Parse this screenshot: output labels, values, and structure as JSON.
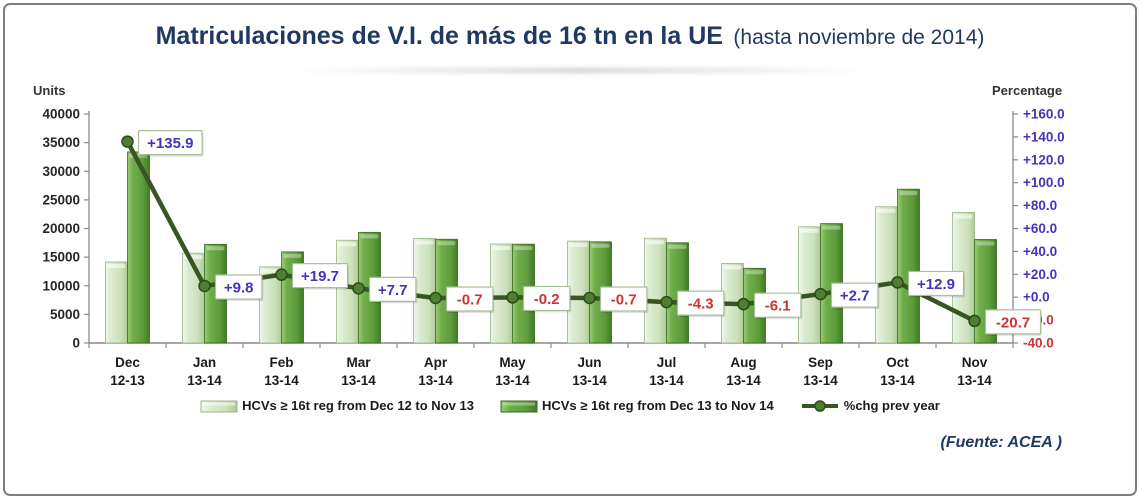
{
  "title": {
    "main": "Matriculaciones de V.I. de más de 16 tn en la UE",
    "paren": "(hasta noviembre de 2014)"
  },
  "axes": {
    "left_label": "Units",
    "right_label": "Percentage",
    "left_ticks": [
      0,
      5000,
      10000,
      15000,
      20000,
      25000,
      30000,
      35000,
      40000
    ],
    "right_ticks": [
      {
        "v": 160,
        "t": "+160.0"
      },
      {
        "v": 140,
        "t": "+140.0"
      },
      {
        "v": 120,
        "t": "+120.0"
      },
      {
        "v": 100,
        "t": "+100.0"
      },
      {
        "v": 80,
        "t": "+80.0"
      },
      {
        "v": 60,
        "t": "+60.0"
      },
      {
        "v": 40,
        "t": "+40.0"
      },
      {
        "v": 20,
        "t": "+20.0"
      },
      {
        "v": 0,
        "t": "+0.0"
      },
      {
        "v": -20,
        "t": "-20.0"
      },
      {
        "v": -40,
        "t": "-40.0"
      }
    ]
  },
  "chart_data": {
    "type": "bar",
    "categories": [
      "Dec",
      "Jan",
      "Feb",
      "Mar",
      "Apr",
      "May",
      "Jun",
      "Jul",
      "Aug",
      "Sep",
      "Oct",
      "Nov"
    ],
    "period_labels": [
      "12-13",
      "13-14",
      "13-14",
      "13-14",
      "13-14",
      "13-14",
      "13-14",
      "13-14",
      "13-14",
      "13-14",
      "13-14",
      "13-14"
    ],
    "ylabel_left": "Units",
    "ylabel_right": "Percentage",
    "ylim_left": [
      0,
      40000
    ],
    "ylim_right": [
      -40,
      160
    ],
    "grid": false,
    "legend_position": "bottom",
    "series": [
      {
        "name": "HCVs ≥ 16t reg from Dec 12 to Nov 13",
        "type": "bar",
        "values": [
          14150,
          15700,
          13300,
          17950,
          18250,
          17300,
          17800,
          18300,
          13900,
          20300,
          23800,
          22800
        ]
      },
      {
        "name": "HCVs ≥ 16t reg from Dec 13 to Nov 14",
        "type": "bar",
        "values": [
          33380,
          17240,
          15920,
          19330,
          18120,
          17265,
          17675,
          17510,
          13050,
          20850,
          26870,
          18080
        ]
      },
      {
        "name": "%chg prev year",
        "type": "line",
        "values": [
          135.9,
          9.8,
          19.7,
          7.7,
          -0.7,
          -0.2,
          -0.7,
          -4.3,
          -6.1,
          2.7,
          12.9,
          -20.7
        ],
        "labels": [
          "+135.9",
          "+9.8",
          "+19.7",
          "+7.7",
          "-0.7",
          "-0.2",
          "-0.7",
          "-4.3",
          "-6.1",
          "+2.7",
          "+12.9",
          "-20.7"
        ]
      }
    ]
  },
  "legend": {
    "items": [
      {
        "label": "HCVs ≥ 16t reg from Dec 12 to Nov 13"
      },
      {
        "label": "HCVs ≥ 16t reg from Dec 13 to Nov 14"
      },
      {
        "label": "%chg prev year"
      }
    ]
  },
  "source": "(Fuente: ACEA )",
  "colors": {
    "title_navy": "#1f3864",
    "axis_gray": "#8a8a8a",
    "tick_text": "#262626",
    "positive_text": "#4633bb",
    "negative_text": "#cc3333",
    "bar_prev_light": "#d9ead0",
    "bar_prev_edge": "#9ab584",
    "bar_curr_main": "#5d9c3b",
    "bar_curr_edge": "#3a6b22",
    "line_green": "#375623",
    "label_box_border": "#a9bf97"
  }
}
